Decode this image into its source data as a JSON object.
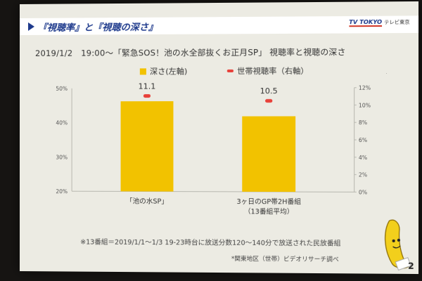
{
  "header": {
    "title": "『視聴率』と『視聴の深さ』",
    "logo_mark": "TV TOKYO",
    "logo_text": "テレビ東京"
  },
  "chart_data": {
    "type": "bar",
    "title": "2019/1/2　19:00～「緊急SOS！池の水全部抜くお正月SP」 視聴率と視聴の深さ",
    "categories": [
      "「池の水SP」",
      "3ヶ日のGP帯2H番組"
    ],
    "category_sublabels": [
      "",
      "（13番組平均）"
    ],
    "series": [
      {
        "name": "深さ(左軸)",
        "type": "bar",
        "axis": "left",
        "values": [
          46.2,
          41.8
        ],
        "color": "#f2c200"
      },
      {
        "name": "世帯視聴率（右軸）",
        "type": "marker",
        "axis": "right",
        "values": [
          11.1,
          10.5
        ],
        "color": "#e8413a"
      }
    ],
    "data_labels": [
      "11.1",
      "10.5"
    ],
    "left_axis": {
      "ylim": [
        20,
        50
      ],
      "ticks": [
        "50%",
        "40%",
        "30%",
        "20%"
      ],
      "tick_values": [
        50,
        40,
        30,
        20
      ]
    },
    "right_axis": {
      "ylim": [
        0,
        12
      ],
      "ticks": [
        "12%",
        "10%",
        "8%",
        "6%",
        "4%",
        "2%",
        "0%"
      ],
      "tick_values": [
        12,
        10,
        8,
        6,
        4,
        2,
        0
      ]
    }
  },
  "footnote": "※13番組＝2019/1/1～1/3 19-23時台に放送分数120～140分で放送された民放番組",
  "source": "*関東地区（世帯）ビデオリサーチ調べ",
  "page_number": "2",
  "colors": {
    "bar": "#f2c200",
    "marker": "#e8413a",
    "header": "#1e3a8c",
    "slide_bg": "#ecebe3"
  },
  "mascot": {
    "icon": "banana-mascot-icon"
  }
}
